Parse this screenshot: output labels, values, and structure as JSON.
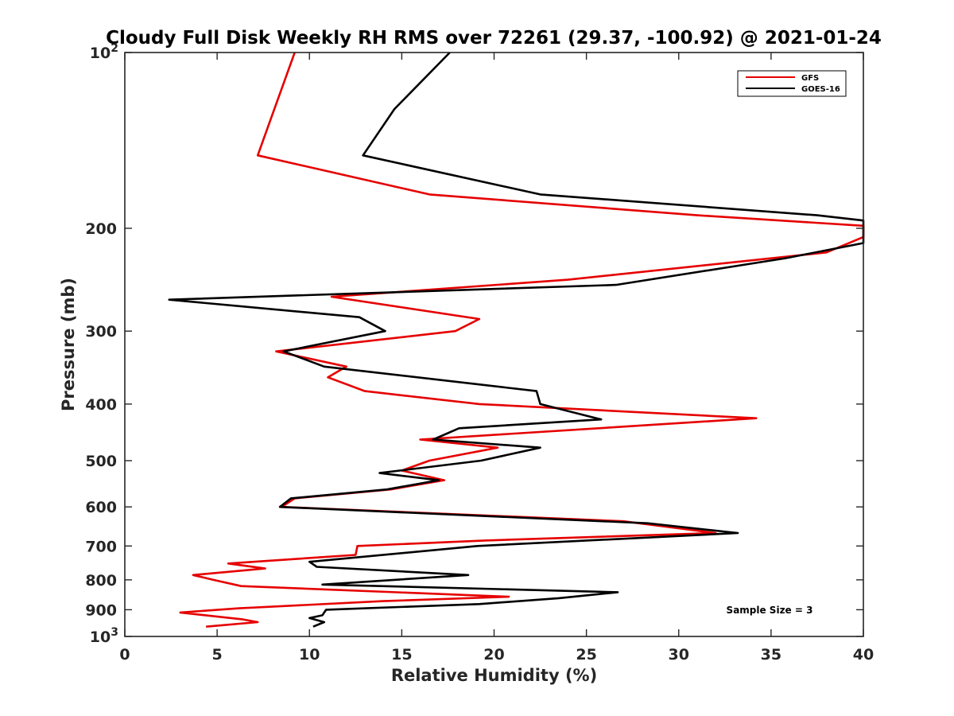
{
  "chart_data": {
    "type": "line",
    "title": "Cloudy Full Disk Weekly RH RMS over 72261 (29.37, -100.92) @ 2021-01-24",
    "xlabel": "Relative Humidity (%)",
    "ylabel": "Pressure (mb)",
    "xlim": [
      0,
      40
    ],
    "ylim": [
      100,
      1000
    ],
    "y_scale": "log",
    "y_reversed": true,
    "grid": false,
    "legend_position": "top-right",
    "x_ticks": [
      {
        "value": 0,
        "label": "0"
      },
      {
        "value": 5,
        "label": "5"
      },
      {
        "value": 10,
        "label": "10"
      },
      {
        "value": 15,
        "label": "15"
      },
      {
        "value": 20,
        "label": "20"
      },
      {
        "value": 25,
        "label": "25"
      },
      {
        "value": 30,
        "label": "30"
      },
      {
        "value": 35,
        "label": "35"
      },
      {
        "value": 40,
        "label": "40"
      }
    ],
    "y_ticks": [
      {
        "value": 100,
        "label": "10",
        "sup": "2"
      },
      {
        "value": 200,
        "label": "200",
        "sup": ""
      },
      {
        "value": 300,
        "label": "300",
        "sup": ""
      },
      {
        "value": 400,
        "label": "400",
        "sup": ""
      },
      {
        "value": 500,
        "label": "500",
        "sup": ""
      },
      {
        "value": 600,
        "label": "600",
        "sup": ""
      },
      {
        "value": 700,
        "label": "700",
        "sup": ""
      },
      {
        "value": 800,
        "label": "800",
        "sup": ""
      },
      {
        "value": 900,
        "label": "900",
        "sup": ""
      },
      {
        "value": 1000,
        "label": "10",
        "sup": "3"
      }
    ],
    "series": [
      {
        "name": "GFS",
        "color": "#e60000",
        "points": [
          [
            9.2,
            100
          ],
          [
            8.1,
            125
          ],
          [
            7.2,
            150
          ],
          [
            16.5,
            175
          ],
          [
            31.0,
            190
          ],
          [
            40.0,
            198
          ],
          [
            40.0,
            207
          ],
          [
            38.0,
            220
          ],
          [
            24.0,
            245
          ],
          [
            11.2,
            262
          ],
          [
            19.2,
            286
          ],
          [
            17.9,
            300
          ],
          [
            8.2,
            325
          ],
          [
            12.0,
            345
          ],
          [
            11.0,
            360
          ],
          [
            13.0,
            380
          ],
          [
            19.2,
            400
          ],
          [
            34.2,
            423
          ],
          [
            16.0,
            460
          ],
          [
            20.2,
            475
          ],
          [
            16.5,
            500
          ],
          [
            15.0,
            520
          ],
          [
            17.3,
            540
          ],
          [
            14.4,
            560
          ],
          [
            9.2,
            580
          ],
          [
            8.5,
            600
          ],
          [
            27.0,
            635
          ],
          [
            32.0,
            665
          ],
          [
            19.5,
            685
          ],
          [
            12.6,
            700
          ],
          [
            12.5,
            725
          ],
          [
            5.6,
            750
          ],
          [
            7.6,
            765
          ],
          [
            3.7,
            785
          ],
          [
            4.8,
            800
          ],
          [
            6.3,
            820
          ],
          [
            20.8,
            855
          ],
          [
            14.0,
            870
          ],
          [
            6.2,
            895
          ],
          [
            3.0,
            910
          ],
          [
            6.4,
            935
          ],
          [
            7.2,
            945
          ],
          [
            4.4,
            962
          ]
        ]
      },
      {
        "name": "GOES-16",
        "color": "#000000",
        "points": [
          [
            17.6,
            100
          ],
          [
            14.6,
            125
          ],
          [
            12.9,
            150
          ],
          [
            22.5,
            175
          ],
          [
            37.5,
            190
          ],
          [
            40.0,
            194
          ],
          [
            40.0,
            212
          ],
          [
            35.8,
            225
          ],
          [
            26.6,
            250
          ],
          [
            2.4,
            265
          ],
          [
            12.7,
            284
          ],
          [
            14.1,
            300
          ],
          [
            8.6,
            325
          ],
          [
            10.8,
            345
          ],
          [
            22.3,
            380
          ],
          [
            22.5,
            400
          ],
          [
            25.8,
            425
          ],
          [
            18.1,
            440
          ],
          [
            16.7,
            460
          ],
          [
            22.5,
            475
          ],
          [
            19.3,
            500
          ],
          [
            13.8,
            525
          ],
          [
            17.0,
            540
          ],
          [
            14.2,
            560
          ],
          [
            9.0,
            580
          ],
          [
            8.4,
            600
          ],
          [
            28.3,
            640
          ],
          [
            33.2,
            665
          ],
          [
            19.1,
            700
          ],
          [
            10.0,
            745
          ],
          [
            10.4,
            760
          ],
          [
            18.6,
            785
          ],
          [
            10.7,
            815
          ],
          [
            26.7,
            840
          ],
          [
            23.5,
            860
          ],
          [
            19.2,
            880
          ],
          [
            10.9,
            900
          ],
          [
            10.7,
            920
          ],
          [
            10.0,
            930
          ],
          [
            10.8,
            945
          ],
          [
            10.2,
            962
          ]
        ]
      }
    ],
    "legend": [
      {
        "label": "GFS",
        "color": "#e60000"
      },
      {
        "label": "GOES-16",
        "color": "#000000"
      }
    ],
    "annotations": [
      {
        "text": "Sample Size = 3"
      }
    ]
  }
}
